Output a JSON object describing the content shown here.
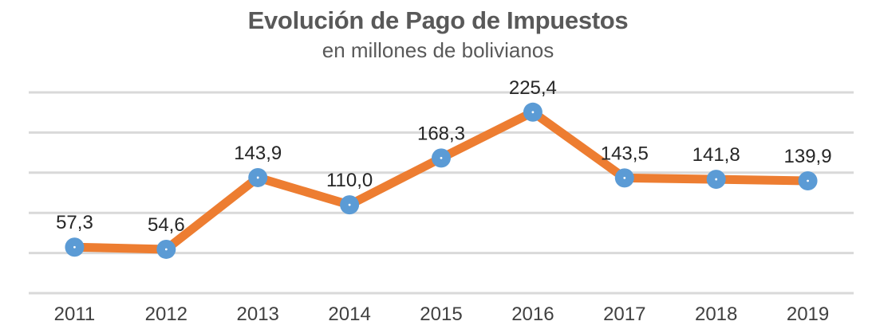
{
  "chart_data": {
    "type": "line",
    "title": "Evolución de Pago de Impuestos",
    "subtitle": "en millones de bolivianos",
    "xlabel": "",
    "ylabel": "",
    "categories": [
      "2011",
      "2012",
      "2013",
      "2014",
      "2015",
      "2016",
      "2017",
      "2018",
      "2019"
    ],
    "series": [
      {
        "values": [
          57.3,
          54.6,
          143.9,
          110.0,
          168.3,
          225.4,
          143.5,
          141.8,
          139.9
        ],
        "labels": [
          "57,3",
          "54,6",
          "143,9",
          "110,0",
          "168,3",
          "225,4",
          "143,5",
          "141,8",
          "139,9"
        ]
      }
    ],
    "ylim": [
      0,
      250
    ],
    "grid": true,
    "legend": "none",
    "colors": {
      "line": "#ed7d31",
      "marker": "#5b9bd5",
      "grid": "#d9d9d9",
      "text": "#595959"
    }
  }
}
